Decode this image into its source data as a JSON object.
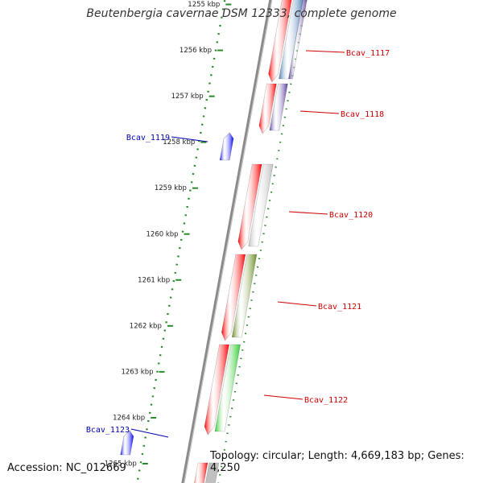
{
  "title": "Beutenbergia cavernae DSM 12333, complete genome",
  "accession": "Accession: NC_012669",
  "summary": "Topology: circular; Length: 4,669,183 bp; Genes: 4,250",
  "colors": {
    "backbone": "#8a8a8a",
    "tick": "#2a8a2a",
    "cds_forward": "#ff0000",
    "gene_blue": "#0000ff",
    "label_red": "#cc0000",
    "label_blue": "#0000aa"
  },
  "ticks": [
    "1255 kbp",
    "1256 kbp",
    "1257 kbp",
    "1258 kbp",
    "1259 kbp",
    "1260 kbp",
    "1261 kbp",
    "1262 kbp",
    "1263 kbp",
    "1264 kbp",
    "1265 kbp"
  ],
  "genes": [
    {
      "label": "Bcav_1117",
      "strand": "forward",
      "cog_color": "#4a7fb5"
    },
    {
      "label": "Bcav_1118",
      "strand": "forward",
      "cog_color": "#5a3fa0"
    },
    {
      "label": "Bcav_1119",
      "strand": "reverse",
      "cog_color": ""
    },
    {
      "label": "Bcav_1120",
      "strand": "forward",
      "cog_color": "#c0c0c0"
    },
    {
      "label": "Bcav_1121",
      "strand": "forward",
      "cog_color": "#6b8e23"
    },
    {
      "label": "Bcav_1122",
      "strand": "forward",
      "cog_color": "#33cc33"
    },
    {
      "label": "Bcav_1123",
      "strand": "reverse",
      "cog_color": ""
    }
  ]
}
